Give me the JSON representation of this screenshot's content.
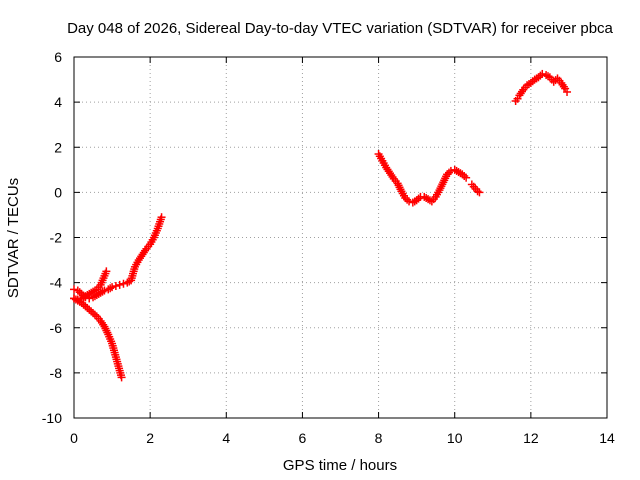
{
  "chart_data": {
    "type": "scatter",
    "title": "Day 048 of 2026, Sidereal Day-to-day VTEC variation (SDTVAR) for receiver pbca",
    "xlabel": "GPS time / hours",
    "ylabel": "SDTVAR / TECUs",
    "xlim": [
      0,
      14
    ],
    "ylim": [
      -10,
      6
    ],
    "xticks": [
      0,
      2,
      4,
      6,
      8,
      10,
      12,
      14
    ],
    "xtick_labels": [
      "0",
      "2",
      "4",
      "6",
      "8",
      "10",
      "12",
      "14"
    ],
    "yticks": [
      -10,
      -8,
      -6,
      -4,
      -2,
      0,
      2,
      4,
      6
    ],
    "ytick_labels": [
      "-10",
      "-8",
      "-6",
      "-4",
      "-2",
      "0",
      "2",
      "4",
      "6"
    ],
    "grid": true,
    "marker": "+",
    "color": "#ff0000",
    "series": [
      {
        "x": [
          0.0,
          0.1,
          0.2,
          0.3,
          0.4,
          0.5,
          0.6,
          0.7,
          0.8,
          0.9,
          1.0,
          1.05,
          1.1,
          1.15,
          1.2,
          1.25
        ],
        "y": [
          -4.7,
          -4.8,
          -4.9,
          -5.05,
          -5.2,
          -5.35,
          -5.5,
          -5.7,
          -5.95,
          -6.3,
          -6.7,
          -7.0,
          -7.3,
          -7.6,
          -7.9,
          -8.2
        ]
      },
      {
        "x": [
          0.0,
          0.1,
          0.2,
          0.3,
          0.4,
          0.5,
          0.6,
          0.7,
          0.75,
          0.8,
          0.85
        ],
        "y": [
          -4.7,
          -4.75,
          -4.7,
          -4.6,
          -4.5,
          -4.4,
          -4.3,
          -4.1,
          -3.9,
          -3.7,
          -3.5
        ]
      },
      {
        "x": [
          0.0,
          0.1,
          0.2,
          0.3,
          0.4,
          0.5,
          0.6,
          0.7,
          0.8,
          0.9,
          1.0,
          1.1,
          1.2,
          1.3,
          1.4,
          1.5,
          1.55,
          1.6,
          1.7,
          1.8,
          1.9,
          2.0,
          2.1,
          2.2,
          2.3
        ],
        "y": [
          -4.3,
          -4.35,
          -4.5,
          -4.65,
          -4.7,
          -4.65,
          -4.55,
          -4.45,
          -4.35,
          -4.3,
          -4.2,
          -4.15,
          -4.1,
          -4.05,
          -4.0,
          -3.9,
          -3.6,
          -3.3,
          -3.0,
          -2.75,
          -2.5,
          -2.3,
          -2.0,
          -1.6,
          -1.1
        ]
      },
      {
        "x": [
          8.0,
          8.1,
          8.2,
          8.3,
          8.4,
          8.5,
          8.6,
          8.7,
          8.8,
          8.9,
          9.0,
          9.1,
          9.2,
          9.3,
          9.4,
          9.5,
          9.6,
          9.7,
          9.8,
          9.9,
          10.0,
          10.1,
          10.2,
          10.3
        ],
        "y": [
          1.7,
          1.4,
          1.1,
          0.85,
          0.6,
          0.4,
          0.05,
          -0.25,
          -0.4,
          -0.45,
          -0.35,
          -0.2,
          -0.2,
          -0.3,
          -0.4,
          -0.2,
          0.1,
          0.45,
          0.8,
          0.95,
          1.0,
          0.9,
          0.8,
          0.65
        ]
      },
      {
        "x": [
          10.45,
          10.5,
          10.55,
          10.6,
          10.65
        ],
        "y": [
          0.35,
          0.25,
          0.15,
          0.05,
          0.0
        ]
      },
      {
        "x": [
          11.6,
          11.65,
          11.7,
          11.8,
          11.9,
          12.0,
          12.1,
          12.2,
          12.3,
          12.4,
          12.5,
          12.6,
          12.7,
          12.8,
          12.9,
          12.95
        ],
        "y": [
          4.05,
          4.15,
          4.3,
          4.55,
          4.75,
          4.85,
          5.0,
          5.1,
          5.25,
          5.2,
          5.1,
          4.9,
          5.05,
          4.85,
          4.6,
          4.45
        ]
      }
    ]
  }
}
